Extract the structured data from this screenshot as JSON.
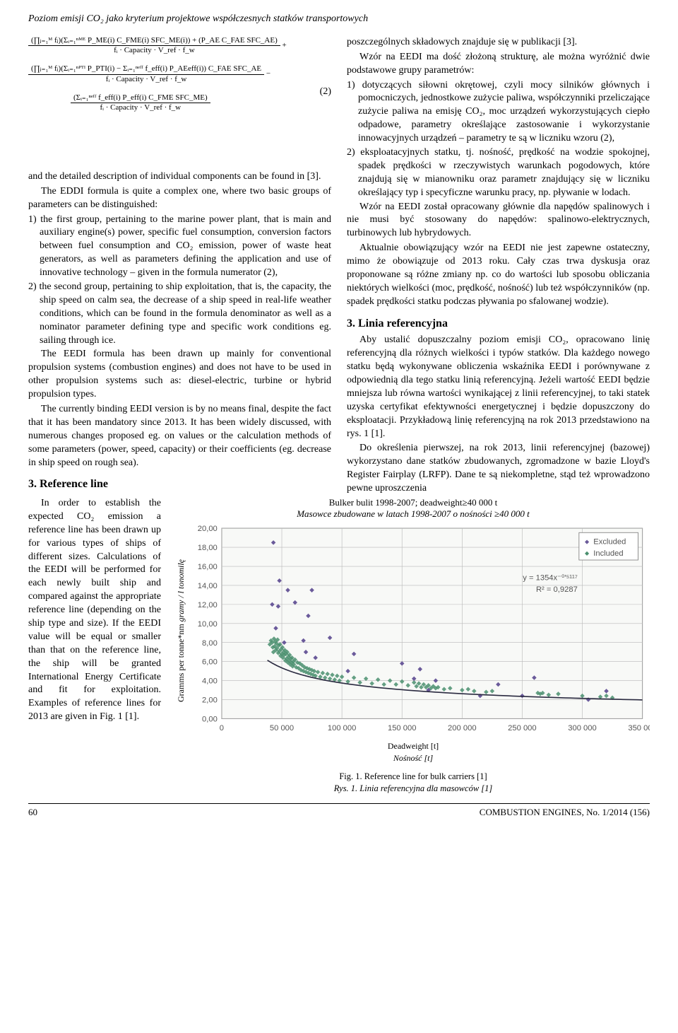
{
  "header": {
    "running_title": "Poziom emisji CO₂ jako kryterium projektowe współczesnych statków transportowych"
  },
  "formula": {
    "eq_number": "(2)",
    "line1_num": "(∏ⱼ₌₁ᴹ fⱼ)(Σᵢ₌₁ⁿᴹᴱ P_ME(i) C_FME(i) SFC_ME(i)) + (P_AE C_FAE SFC_AE)",
    "line1_den": "fᵢ · Capacity · V_ref · f_w",
    "line2_num": "(∏ⱼ₌₁ᴹ fⱼ)(Σᵢ₌₁ⁿᴾᵀᴵ P_PTI(i) − Σᵢ₌₁ⁿᵉᶠᶠ f_eff(i) P_AEeff(i)) C_FAE SFC_AE",
    "line2_den": "fᵢ · Capacity · V_ref · f_w",
    "line3_num": "(Σᵢ₌₁ⁿᵉᶠᶠ f_eff(i) P_eff(i) C_FME SFC_ME)",
    "line3_den": "fᵢ · Capacity · V_ref · f_w"
  },
  "left": {
    "p0": "and the detailed description of individual components can be found in [3].",
    "p1": "The EDDI formula is quite a complex one, where two basic groups of parameters can be distinguished:",
    "li1": "1) the first group, pertaining to the marine power plant, that is main and auxiliary engine(s) power, specific fuel consumption, conversion factors between fuel consumption and CO₂ emission, power of waste heat generators, as well as parameters defining the application and use of innovative technology – given in the formula numerator (2),",
    "li2": "2) the second group, pertaining to ship exploitation, that is, the capacity, the ship speed on calm sea, the decrease of a ship speed in real-life weather conditions, which can be found in the formula denominator as well as a nominator parameter defining type and specific work conditions eg. sailing through ice.",
    "p2": "The EEDI formula has been drawn up mainly for conventional propulsion systems (combustion engines) and does not have to be used in other propulsion systems such as: diesel-electric, turbine or hybrid propulsion types.",
    "p3": "The currently binding EEDI version is by no means final, despite the fact that it has been mandatory since 2013. It has been widely discussed, with numerous changes proposed eg. on values or the calculation methods of some parameters (power, speed, capacity) or their coefficients (eg. decrease in ship speed on rough sea).",
    "sec3": "3. Reference line",
    "p4": "In order to establish the expected CO₂ emission a reference line has been drawn up for various types of ships of different sizes. Calculations of the EEDI will be performed for each newly built ship and compared against the appropriate reference line (depending on the ship type and size). If the EEDI value will be equal or smaller than that on the reference line, the ship will be granted International Energy Certificate and fit for exploitation. Examples of reference lines for 2013 are given in Fig. 1 [1]."
  },
  "right": {
    "p0": "poszczególnych składowych znajduje się w publikacji [3].",
    "p1": "Wzór na EEDI ma dość złożoną strukturę, ale można wyróżnić dwie podstawowe grupy parametrów:",
    "li1": "1) dotyczących siłowni okrętowej, czyli mocy silników głównych i pomocniczych, jednostkowe zużycie paliwa, współczynniki przeliczające zużycie paliwa na emisję CO₂, moc urządzeń wykorzystujących ciepło odpadowe, parametry określające zastosowanie i wykorzystanie innowacyjnych urządzeń – parametry te są w liczniku wzoru (2),",
    "li2": "2) eksploatacyjnych statku, tj. nośność, prędkość na wodzie spokojnej, spadek prędkości w rzeczywistych warunkach pogodowych, które znajdują się w mianowniku oraz parametr znajdujący się w liczniku określający typ i specyficzne warunku pracy, np. pływanie w lodach.",
    "p2": "Wzór na EEDI został opracowany głównie dla napędów spalinowych i nie musi być stosowany do napędów: spalinowo-elektrycznych, turbinowych lub hybrydowych.",
    "p3": "Aktualnie obowiązujący wzór na EEDI nie jest zapewne ostateczny, mimo że obowiązuje od 2013 roku. Cały czas trwa dyskusja oraz proponowane są różne zmiany np. co do wartości lub sposobu obliczania niektórych wielkości (moc, prędkość, nośność) lub też współczynników (np. spadek prędkości statku podczas pływania po sfalowanej wodzie).",
    "sec3": "3. Linia referencyjna",
    "p4": "Aby ustalić dopuszczalny poziom emisji CO₂, opracowano linię referencyjną dla różnych wielkości i typów statków. Dla każdego nowego statku będą wykonywane obliczenia wskaźnika EEDI i porównywane z odpowiednią dla tego statku linią referencyjną. Jeżeli wartość EEDI będzie mniejsza lub równa wartości wynikającej z linii referencyjnej, to taki statek uzyska certyfikat efektywności energetycznej i będzie dopuszczony do eksploatacji. Przykładową linię referencyjną na rok 2013 przedstawiono na rys. 1 [1].",
    "p5": "Do określenia pierwszej, na rok 2013, linii referencyjnej (bazowej) wykorzystano dane statków zbudowanych, zgromadzone w bazie Lloyd's Register Fairplay (LRFP). Dane te są niekompletne, stąd też wprowadzono pewne uproszczenia"
  },
  "chart": {
    "title_en": "Bulker bulit 1998-2007; deadweight≥40 000 t",
    "title_pl": "Masowce zbudowane w latach 1998-2007 o nośności ≥40 000 t",
    "ylabel_en": "Gramms per tonne*nm",
    "ylabel_pl": "gramy / l tonomilę",
    "xlabel_en": "Deadweight [t]",
    "xlabel_pl": "Nośność [t]",
    "legend": [
      "Excluded",
      "Included"
    ],
    "fit_eq": "y = 1354x⁻⁰′⁵¹¹⁷",
    "fit_r2": "R² = 0,9287",
    "xlim": [
      0,
      350000
    ],
    "ylim": [
      0,
      20
    ],
    "xtick_step": 50000,
    "ytick_step": 2,
    "colors": {
      "included": "#4a8f6e",
      "excluded": "#6a5a9a",
      "curve": "#2a2a40",
      "grid": "#b8b8b8",
      "plot_bg": "#f8f9f7",
      "border": "#7a7a7a",
      "text": "#555"
    },
    "excluded_points": [
      [
        42000,
        12.0
      ],
      [
        43000,
        18.5
      ],
      [
        45000,
        9.5
      ],
      [
        47000,
        11.8
      ],
      [
        48000,
        14.5
      ],
      [
        52000,
        8.0
      ],
      [
        55000,
        13.5
      ],
      [
        61000,
        12.2
      ],
      [
        68000,
        8.2
      ],
      [
        70000,
        7.0
      ],
      [
        72000,
        10.8
      ],
      [
        75000,
        13.5
      ],
      [
        78000,
        6.4
      ],
      [
        90000,
        8.5
      ],
      [
        105000,
        5.0
      ],
      [
        110000,
        6.8
      ],
      [
        150000,
        5.8
      ],
      [
        160000,
        4.2
      ],
      [
        165000,
        5.2
      ],
      [
        172000,
        3.0
      ],
      [
        178000,
        4.0
      ],
      [
        215000,
        2.4
      ],
      [
        230000,
        3.6
      ],
      [
        250000,
        2.4
      ],
      [
        260000,
        4.3
      ],
      [
        305000,
        2.0
      ],
      [
        320000,
        2.9
      ]
    ],
    "included_points": [
      [
        40000,
        7.8
      ],
      [
        41000,
        8.2
      ],
      [
        42000,
        8.0
      ],
      [
        42500,
        7.5
      ],
      [
        43000,
        7.0
      ],
      [
        43500,
        8.4
      ],
      [
        44000,
        7.6
      ],
      [
        44500,
        8.1
      ],
      [
        45000,
        7.2
      ],
      [
        45500,
        7.9
      ],
      [
        46000,
        7.4
      ],
      [
        46500,
        8.3
      ],
      [
        47000,
        6.9
      ],
      [
        47500,
        7.7
      ],
      [
        48000,
        7.1
      ],
      [
        48500,
        7.8
      ],
      [
        49000,
        6.6
      ],
      [
        49500,
        7.3
      ],
      [
        50000,
        6.8
      ],
      [
        50500,
        7.5
      ],
      [
        51000,
        6.4
      ],
      [
        51500,
        7.0
      ],
      [
        52000,
        6.7
      ],
      [
        52500,
        7.2
      ],
      [
        53000,
        6.1
      ],
      [
        53500,
        6.8
      ],
      [
        54000,
        6.3
      ],
      [
        54500,
        7.0
      ],
      [
        55000,
        5.9
      ],
      [
        55500,
        6.5
      ],
      [
        56000,
        6.1
      ],
      [
        56500,
        6.7
      ],
      [
        57000,
        5.7
      ],
      [
        57500,
        6.3
      ],
      [
        58000,
        5.9
      ],
      [
        58500,
        6.4
      ],
      [
        59000,
        5.5
      ],
      [
        59500,
        6.0
      ],
      [
        60000,
        5.7
      ],
      [
        61000,
        6.2
      ],
      [
        62000,
        5.4
      ],
      [
        63000,
        5.9
      ],
      [
        64000,
        5.3
      ],
      [
        65000,
        5.8
      ],
      [
        66000,
        5.1
      ],
      [
        67000,
        5.6
      ],
      [
        68000,
        5.0
      ],
      [
        69000,
        5.4
      ],
      [
        70000,
        4.9
      ],
      [
        71000,
        5.3
      ],
      [
        72000,
        4.8
      ],
      [
        73000,
        5.2
      ],
      [
        74000,
        4.7
      ],
      [
        75000,
        5.1
      ],
      [
        76000,
        4.6
      ],
      [
        77000,
        5.0
      ],
      [
        78000,
        4.5
      ],
      [
        80000,
        4.9
      ],
      [
        82000,
        4.4
      ],
      [
        84000,
        4.8
      ],
      [
        86000,
        4.3
      ],
      [
        88000,
        4.7
      ],
      [
        90000,
        4.2
      ],
      [
        92000,
        4.6
      ],
      [
        94000,
        4.1
      ],
      [
        96000,
        4.5
      ],
      [
        98000,
        4.0
      ],
      [
        100000,
        4.4
      ],
      [
        105000,
        3.9
      ],
      [
        110000,
        4.3
      ],
      [
        115000,
        3.8
      ],
      [
        120000,
        4.2
      ],
      [
        125000,
        3.7
      ],
      [
        130000,
        4.1
      ],
      [
        135000,
        3.6
      ],
      [
        140000,
        4.0
      ],
      [
        145000,
        3.6
      ],
      [
        150000,
        3.9
      ],
      [
        155000,
        3.5
      ],
      [
        160000,
        3.8
      ],
      [
        162000,
        3.4
      ],
      [
        164000,
        3.7
      ],
      [
        166000,
        3.3
      ],
      [
        168000,
        3.6
      ],
      [
        170000,
        3.3
      ],
      [
        172000,
        3.5
      ],
      [
        174000,
        3.2
      ],
      [
        176000,
        3.4
      ],
      [
        178000,
        3.2
      ],
      [
        180000,
        3.3
      ],
      [
        185000,
        3.1
      ],
      [
        190000,
        3.2
      ],
      [
        200000,
        3.0
      ],
      [
        205000,
        3.1
      ],
      [
        210000,
        2.9
      ],
      [
        220000,
        2.8
      ],
      [
        225000,
        2.9
      ],
      [
        263000,
        2.7
      ],
      [
        265000,
        2.6
      ],
      [
        267000,
        2.7
      ],
      [
        272000,
        2.5
      ],
      [
        280000,
        2.6
      ],
      [
        300000,
        2.4
      ],
      [
        315000,
        2.3
      ],
      [
        320000,
        2.4
      ],
      [
        325000,
        2.2
      ]
    ]
  },
  "figure_caption": {
    "en": "Fig. 1. Reference line for bulk carriers [1]",
    "pl": "Rys. 1. Linia referencyjna dla masowców [1]"
  },
  "footer": {
    "page": "60",
    "journal": "COMBUSTION ENGINES, No. 1/2014 (156)"
  }
}
